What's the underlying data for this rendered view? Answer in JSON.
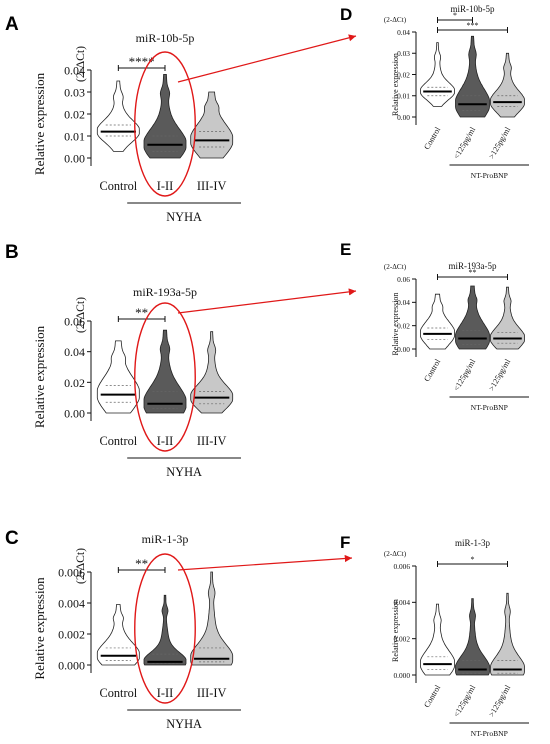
{
  "chart_data": [
    {
      "panel": "A",
      "type": "violin",
      "title": "miR-10b-5p",
      "ylabel": "Relative expression",
      "ylabel_unit": "(2-ΔCt)",
      "ylim": [
        0,
        0.04
      ],
      "yticks": [
        "0.00",
        "0.01",
        "0.02",
        "0.03",
        "0.04"
      ],
      "categories": [
        "Control",
        "I-II",
        "III-IV"
      ],
      "group_label": "NYHA",
      "series": [
        {
          "median": 0.012,
          "min": 0.003,
          "max": 0.035,
          "q1": 0.01,
          "q3": 0.015,
          "color": "#ffffff"
        },
        {
          "median": 0.006,
          "min": 0.0,
          "max": 0.038,
          "q1": 0.003,
          "q3": 0.01,
          "color": "#5a5a5a"
        },
        {
          "median": 0.008,
          "min": 0.0,
          "max": 0.03,
          "q1": 0.005,
          "q3": 0.012,
          "color": "#c8c8c8"
        }
      ],
      "significance": [
        {
          "from": 0,
          "to": 1,
          "label": "****"
        }
      ],
      "highlight_index": 1
    },
    {
      "panel": "D",
      "type": "violin",
      "title": "miR-10b-5p",
      "ylabel": "Relative expression",
      "ylabel_unit": "(2-ΔCt)",
      "ylim": [
        0,
        0.04
      ],
      "yticks": [
        "0.00",
        "0.01",
        "0.02",
        "0.03",
        "0.04"
      ],
      "categories": [
        "Control",
        "<125pg/ml",
        ">125pg/ml"
      ],
      "group_label": "NT-ProBNP",
      "series": [
        {
          "median": 0.012,
          "min": 0.005,
          "max": 0.035,
          "q1": 0.01,
          "q3": 0.014,
          "color": "#ffffff"
        },
        {
          "median": 0.006,
          "min": 0.0,
          "max": 0.038,
          "q1": 0.003,
          "q3": 0.01,
          "color": "#5a5a5a"
        },
        {
          "median": 0.007,
          "min": 0.0,
          "max": 0.03,
          "q1": 0.005,
          "q3": 0.01,
          "color": "#c8c8c8"
        }
      ],
      "significance": [
        {
          "from": 0,
          "to": 1,
          "label": "*"
        },
        {
          "from": 0,
          "to": 2,
          "label": "***"
        }
      ],
      "highlight_index": -1
    },
    {
      "panel": "B",
      "type": "violin",
      "title": "miR-193a-5p",
      "ylabel": "Relative expression",
      "ylabel_unit": "(2-ΔCt)",
      "ylim": [
        0,
        0.06
      ],
      "yticks": [
        "0.00",
        "0.02",
        "0.04",
        "0.06"
      ],
      "categories": [
        "Control",
        "I-II",
        "III-IV"
      ],
      "group_label": "NYHA",
      "series": [
        {
          "median": 0.012,
          "min": 0.0,
          "max": 0.047,
          "q1": 0.007,
          "q3": 0.018,
          "color": "#ffffff"
        },
        {
          "median": 0.006,
          "min": 0.0,
          "max": 0.054,
          "q1": 0.003,
          "q3": 0.014,
          "color": "#5a5a5a"
        },
        {
          "median": 0.01,
          "min": 0.0,
          "max": 0.053,
          "q1": 0.006,
          "q3": 0.014,
          "color": "#c8c8c8"
        }
      ],
      "significance": [
        {
          "from": 0,
          "to": 1,
          "label": "**"
        }
      ],
      "highlight_index": 1
    },
    {
      "panel": "E",
      "type": "violin",
      "title": "miR-193a-5p",
      "ylabel": "Relative expression",
      "ylabel_unit": "(2-ΔCt)",
      "ylim": [
        0,
        0.06
      ],
      "yticks": [
        "0.00",
        "0.02",
        "0.04",
        "0.06"
      ],
      "categories": [
        "Control",
        "<125pg/ml",
        ">125pg/ml"
      ],
      "group_label": "NT-ProBNP",
      "series": [
        {
          "median": 0.013,
          "min": 0.0,
          "max": 0.047,
          "q1": 0.008,
          "q3": 0.018,
          "color": "#ffffff"
        },
        {
          "median": 0.009,
          "min": 0.0,
          "max": 0.054,
          "q1": 0.004,
          "q3": 0.016,
          "color": "#5a5a5a"
        },
        {
          "median": 0.009,
          "min": 0.0,
          "max": 0.053,
          "q1": 0.005,
          "q3": 0.014,
          "color": "#c8c8c8"
        }
      ],
      "significance": [
        {
          "from": 0,
          "to": 2,
          "label": "**"
        }
      ],
      "highlight_index": -1
    },
    {
      "panel": "C",
      "type": "violin",
      "title": "miR-1-3p",
      "ylabel": "Relative expression",
      "ylabel_unit": "(2-ΔCt)",
      "ylim": [
        0,
        0.006
      ],
      "yticks": [
        "0.000",
        "0.002",
        "0.004",
        "0.006"
      ],
      "categories": [
        "Control",
        "I-II",
        "III-IV"
      ],
      "group_label": "NYHA",
      "series": [
        {
          "median": 0.0006,
          "min": 0.0,
          "max": 0.0039,
          "q1": 0.0003,
          "q3": 0.0011,
          "color": "#ffffff"
        },
        {
          "median": 0.0002,
          "min": 0.0,
          "max": 0.0045,
          "q1": 0.0001,
          "q3": 0.0007,
          "color": "#5a5a5a"
        },
        {
          "median": 0.0004,
          "min": 0.0,
          "max": 0.006,
          "q1": 0.0002,
          "q3": 0.0011,
          "color": "#c8c8c8"
        }
      ],
      "significance": [
        {
          "from": 0,
          "to": 1,
          "label": "**"
        }
      ],
      "highlight_index": 1
    },
    {
      "panel": "F",
      "type": "violin",
      "title": "miR-1-3p",
      "ylabel": "Relative expression",
      "ylabel_unit": "(2-ΔCt)",
      "ylim": [
        0,
        0.006
      ],
      "yticks": [
        "0.000",
        "0.002",
        "0.004",
        "0.006"
      ],
      "categories": [
        "Control",
        "<125pg/ml",
        ">125pg/ml"
      ],
      "group_label": "NT-ProBNP",
      "series": [
        {
          "median": 0.0006,
          "min": 0.0,
          "max": 0.0039,
          "q1": 0.0003,
          "q3": 0.001,
          "color": "#ffffff"
        },
        {
          "median": 0.0003,
          "min": 0.0,
          "max": 0.0042,
          "q1": 0.0001,
          "q3": 0.0008,
          "color": "#5a5a5a"
        },
        {
          "median": 0.0003,
          "min": 0.0,
          "max": 0.0045,
          "q1": 0.0001,
          "q3": 0.0008,
          "color": "#c8c8c8"
        }
      ],
      "significance": [
        {
          "from": 0,
          "to": 2,
          "label": "*"
        }
      ],
      "highlight_index": -1
    }
  ],
  "colors": {
    "highlight": "#e01818",
    "arrow": "#e01818",
    "axis": "#111111"
  }
}
